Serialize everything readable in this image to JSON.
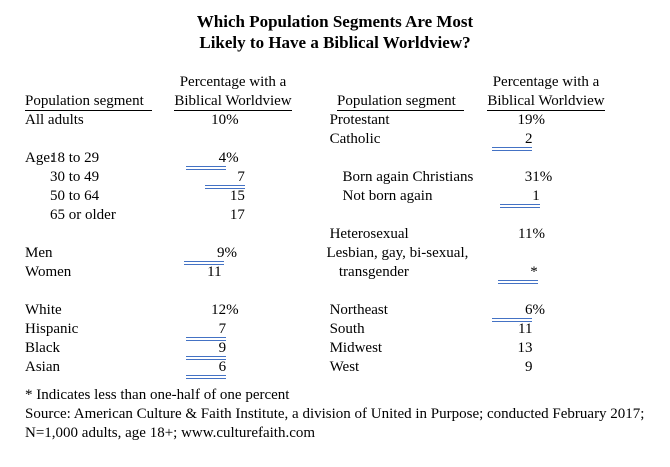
{
  "title": {
    "line1": "Which Population Segments Are Most",
    "line2": "Likely to Have a Biblical Worldview?"
  },
  "column_headers": {
    "segment": "Population segment",
    "percentage_line1": "Percentage with a",
    "percentage_line2": "Biblical Worldview"
  },
  "rows": [
    {
      "left": {
        "label": "All adults",
        "num": "10",
        "pct": "%"
      },
      "right": {
        "label": "Protestant",
        "num": "19",
        "pct": "%"
      }
    },
    {
      "left": null,
      "right": {
        "label": "Catholic",
        "num": "2",
        "blue": true
      }
    },
    {
      "left": {
        "prefix": "Age:",
        "label": "18 to 29",
        "num": "4",
        "pct": "%",
        "blue": true
      },
      "right": null
    },
    {
      "left": {
        "label": "30 to 49",
        "indent": true,
        "num": "7",
        "blue": true
      },
      "right": {
        "label": "Born again Christians",
        "num": "31",
        "pct": "%"
      }
    },
    {
      "left": {
        "label": "50 to 64",
        "indent": true,
        "num": "15"
      },
      "right": {
        "label": "Not born again",
        "num": "1",
        "blue": true
      }
    },
    {
      "left": {
        "label": "65 or older",
        "indent": true,
        "num": "17"
      },
      "right": null
    },
    {
      "left": null,
      "right": {
        "label": "Heterosexual",
        "num": "11",
        "pct": "%"
      }
    },
    {
      "left": {
        "label": "Men",
        "num": "9",
        "pct": "%",
        "blue": true
      },
      "right": {
        "label": "Lesbian, gay, bi-sexual,"
      }
    },
    {
      "left": {
        "label": "Women",
        "num": "11"
      },
      "right": {
        "label": "transgender",
        "indent": true,
        "num": "*",
        "blue": true
      }
    },
    {
      "left": null,
      "right": null
    },
    {
      "left": {
        "label": "White",
        "num": "12",
        "pct": "%"
      },
      "right": {
        "label": "Northeast",
        "num": "6",
        "pct": "%",
        "blue": true
      }
    },
    {
      "left": {
        "label": "Hispanic",
        "num": "7",
        "blue": true
      },
      "right": {
        "label": "South",
        "num": "11"
      }
    },
    {
      "left": {
        "label": "Black",
        "num": "9",
        "blue": true
      },
      "right": {
        "label": "Midwest",
        "num": "13"
      }
    },
    {
      "left": {
        "label": "Asian",
        "num": "6",
        "blue": true
      },
      "right": {
        "label": "West",
        "num": "9"
      }
    }
  ],
  "footnote": "* Indicates less than one-half of one percent",
  "source": "Source: American Culture & Faith Institute, a division of United in Purpose; conducted February 2017; N=1,000 adults, age 18+; www.culturefaith.com",
  "colors": {
    "underline_blue": "#4472C4",
    "text": "#000000",
    "background": "#ffffff"
  },
  "chart_data": {
    "type": "table",
    "title": "Which Population Segments Are Most Likely to Have a Biblical Worldview?",
    "value_label": "Percentage with a Biblical Worldview",
    "note": "* Indicates less than one-half of one percent",
    "segments": [
      {
        "segment": "All adults",
        "value": 10
      },
      {
        "segment": "Age 18 to 29",
        "value": 4
      },
      {
        "segment": "Age 30 to 49",
        "value": 7
      },
      {
        "segment": "Age 50 to 64",
        "value": 15
      },
      {
        "segment": "Age 65 or older",
        "value": 17
      },
      {
        "segment": "Men",
        "value": 9
      },
      {
        "segment": "Women",
        "value": 11
      },
      {
        "segment": "White",
        "value": 12
      },
      {
        "segment": "Hispanic",
        "value": 7
      },
      {
        "segment": "Black",
        "value": 9
      },
      {
        "segment": "Asian",
        "value": 6
      },
      {
        "segment": "Protestant",
        "value": 19
      },
      {
        "segment": "Catholic",
        "value": 2
      },
      {
        "segment": "Born again Christians",
        "value": 31
      },
      {
        "segment": "Not born again",
        "value": 1
      },
      {
        "segment": "Heterosexual",
        "value": 11
      },
      {
        "segment": "Lesbian, gay, bi-sexual, transgender",
        "value": "*"
      },
      {
        "segment": "Northeast",
        "value": 6
      },
      {
        "segment": "South",
        "value": 11
      },
      {
        "segment": "Midwest",
        "value": 13
      },
      {
        "segment": "West",
        "value": 9
      }
    ]
  }
}
